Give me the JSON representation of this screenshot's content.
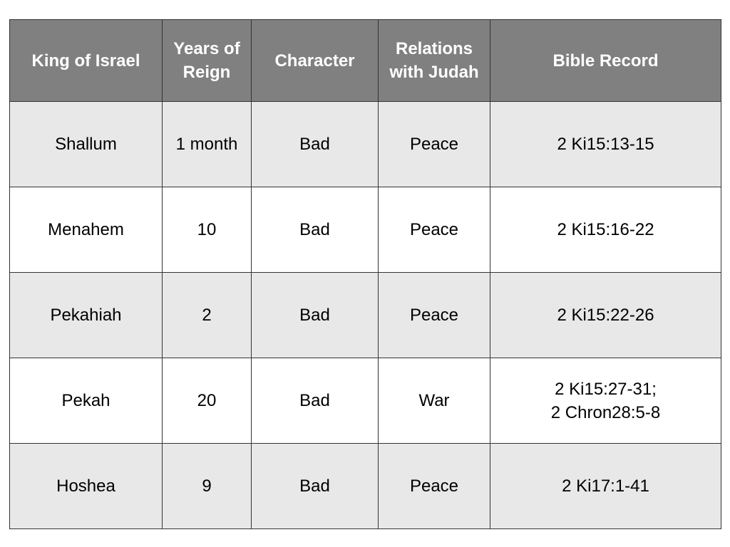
{
  "table": {
    "headers": [
      {
        "lines": [
          "King of Israel"
        ]
      },
      {
        "lines": [
          "Years of",
          "Reign"
        ]
      },
      {
        "lines": [
          "Character"
        ]
      },
      {
        "lines": [
          "Relations",
          "with Judah"
        ]
      },
      {
        "lines": [
          "Bible Record"
        ]
      }
    ],
    "rows": [
      {
        "king": "Shallum",
        "years": "1 month",
        "character": "Bad",
        "relations": "Peace",
        "record": [
          "2 Ki15:13-15"
        ]
      },
      {
        "king": "Menahem",
        "years": "10",
        "character": "Bad",
        "relations": "Peace",
        "record": [
          "2 Ki15:16-22"
        ]
      },
      {
        "king": "Pekahiah",
        "years": "2",
        "character": "Bad",
        "relations": "Peace",
        "record": [
          "2 Ki15:22-26"
        ]
      },
      {
        "king": "Pekah",
        "years": "20",
        "character": "Bad",
        "relations": "War",
        "record": [
          "2 Ki15:27-31;",
          "2 Chron28:5-8"
        ]
      },
      {
        "king": "Hoshea",
        "years": "9",
        "character": "Bad",
        "relations": "Peace",
        "record": [
          "2 Ki17:1-41"
        ]
      }
    ]
  },
  "colors": {
    "header_background": "#808080",
    "header_text": "#ffffff",
    "row_shaded": "#e8e8e8",
    "row_plain": "#ffffff",
    "border": "#333333"
  }
}
